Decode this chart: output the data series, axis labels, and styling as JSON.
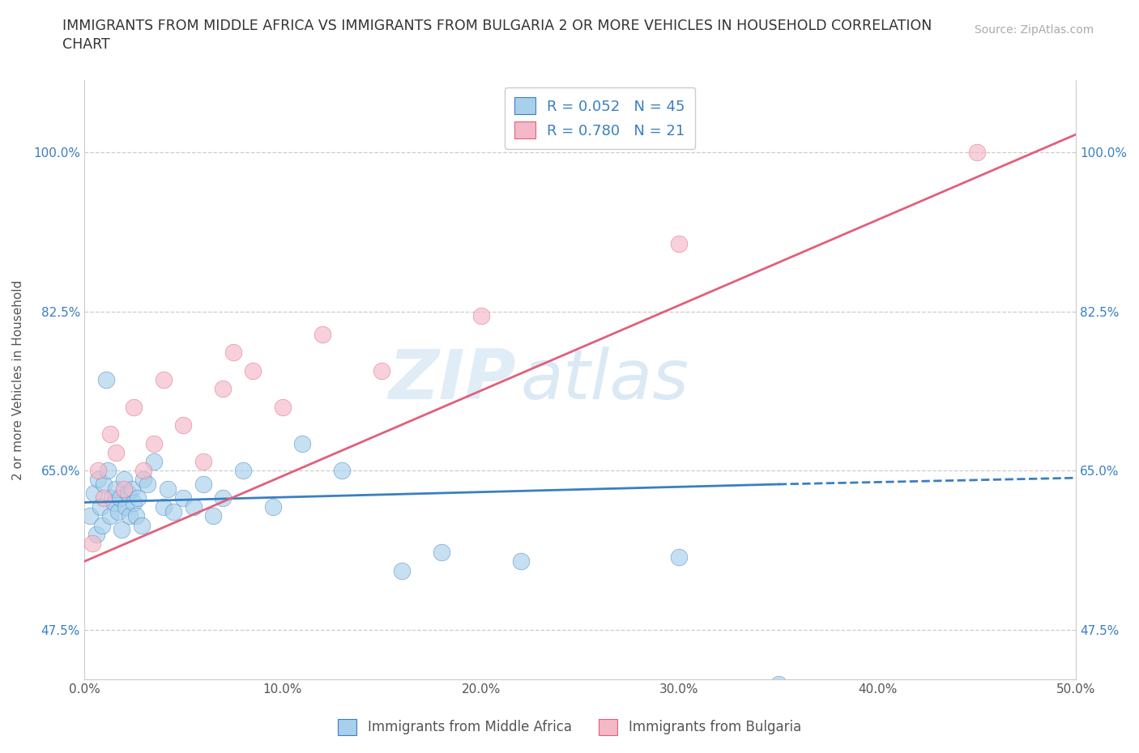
{
  "title_line1": "IMMIGRANTS FROM MIDDLE AFRICA VS IMMIGRANTS FROM BULGARIA 2 OR MORE VEHICLES IN HOUSEHOLD CORRELATION",
  "title_line2": "CHART",
  "source": "Source: ZipAtlas.com",
  "xlabel_blue": "Immigrants from Middle Africa",
  "xlabel_pink": "Immigrants from Bulgaria",
  "ylabel": "2 or more Vehicles in Household",
  "R_blue": 0.052,
  "N_blue": 45,
  "R_pink": 0.78,
  "N_pink": 21,
  "xlim": [
    0.0,
    50.0
  ],
  "ylim": [
    42.0,
    108.0
  ],
  "xticks": [
    0.0,
    10.0,
    20.0,
    30.0,
    40.0,
    50.0
  ],
  "yticks": [
    47.5,
    65.0,
    82.5,
    100.0
  ],
  "ytick_labels": [
    "47.5%",
    "65.0%",
    "82.5%",
    "100.0%"
  ],
  "xtick_labels": [
    "0.0%",
    "10.0%",
    "20.0%",
    "30.0%",
    "40.0%",
    "50.0%"
  ],
  "color_blue": "#a8d0ec",
  "color_pink": "#f4b8c8",
  "trend_blue": "#3a7fc1",
  "trend_pink": "#e0607a",
  "watermark_zip": "ZIP",
  "watermark_atlas": "atlas",
  "blue_scatter_x": [
    0.3,
    0.5,
    0.6,
    0.7,
    0.8,
    0.9,
    1.0,
    1.1,
    1.2,
    1.3,
    1.4,
    1.5,
    1.6,
    1.7,
    1.8,
    1.9,
    2.0,
    2.1,
    2.2,
    2.3,
    2.4,
    2.5,
    2.6,
    2.7,
    2.9,
    3.0,
    3.2,
    3.5,
    4.0,
    4.2,
    4.5,
    5.0,
    5.5,
    6.0,
    6.5,
    7.0,
    8.0,
    9.5,
    11.0,
    13.0,
    16.0,
    18.0,
    22.0,
    30.0,
    35.0
  ],
  "blue_scatter_y": [
    60.0,
    62.5,
    58.0,
    64.0,
    61.0,
    59.0,
    63.5,
    75.0,
    65.0,
    60.0,
    62.0,
    61.5,
    63.0,
    60.5,
    62.0,
    58.5,
    64.0,
    61.0,
    62.5,
    60.0,
    63.0,
    61.5,
    60.0,
    62.0,
    59.0,
    64.0,
    63.5,
    66.0,
    61.0,
    63.0,
    60.5,
    62.0,
    61.0,
    63.5,
    60.0,
    62.0,
    65.0,
    61.0,
    68.0,
    65.0,
    54.0,
    56.0,
    55.0,
    55.5,
    41.5
  ],
  "pink_scatter_x": [
    0.4,
    0.7,
    1.0,
    1.3,
    1.6,
    2.0,
    2.5,
    3.0,
    3.5,
    4.0,
    5.0,
    6.0,
    7.0,
    7.5,
    8.5,
    10.0,
    12.0,
    15.0,
    20.0,
    30.0,
    45.0
  ],
  "pink_scatter_y": [
    57.0,
    65.0,
    62.0,
    69.0,
    67.0,
    63.0,
    72.0,
    65.0,
    68.0,
    75.0,
    70.0,
    66.0,
    74.0,
    78.0,
    76.0,
    72.0,
    80.0,
    76.0,
    82.0,
    90.0,
    100.0
  ],
  "blue_trend_x0": 0.0,
  "blue_trend_y0": 61.5,
  "blue_trend_x1": 35.0,
  "blue_trend_y1": 63.5,
  "blue_dash_x0": 35.0,
  "blue_dash_y0": 63.5,
  "blue_dash_x1": 50.0,
  "blue_dash_y1": 64.2,
  "pink_trend_x0": 0.0,
  "pink_trend_y0": 55.0,
  "pink_trend_x1": 50.0,
  "pink_trend_y1": 102.0
}
